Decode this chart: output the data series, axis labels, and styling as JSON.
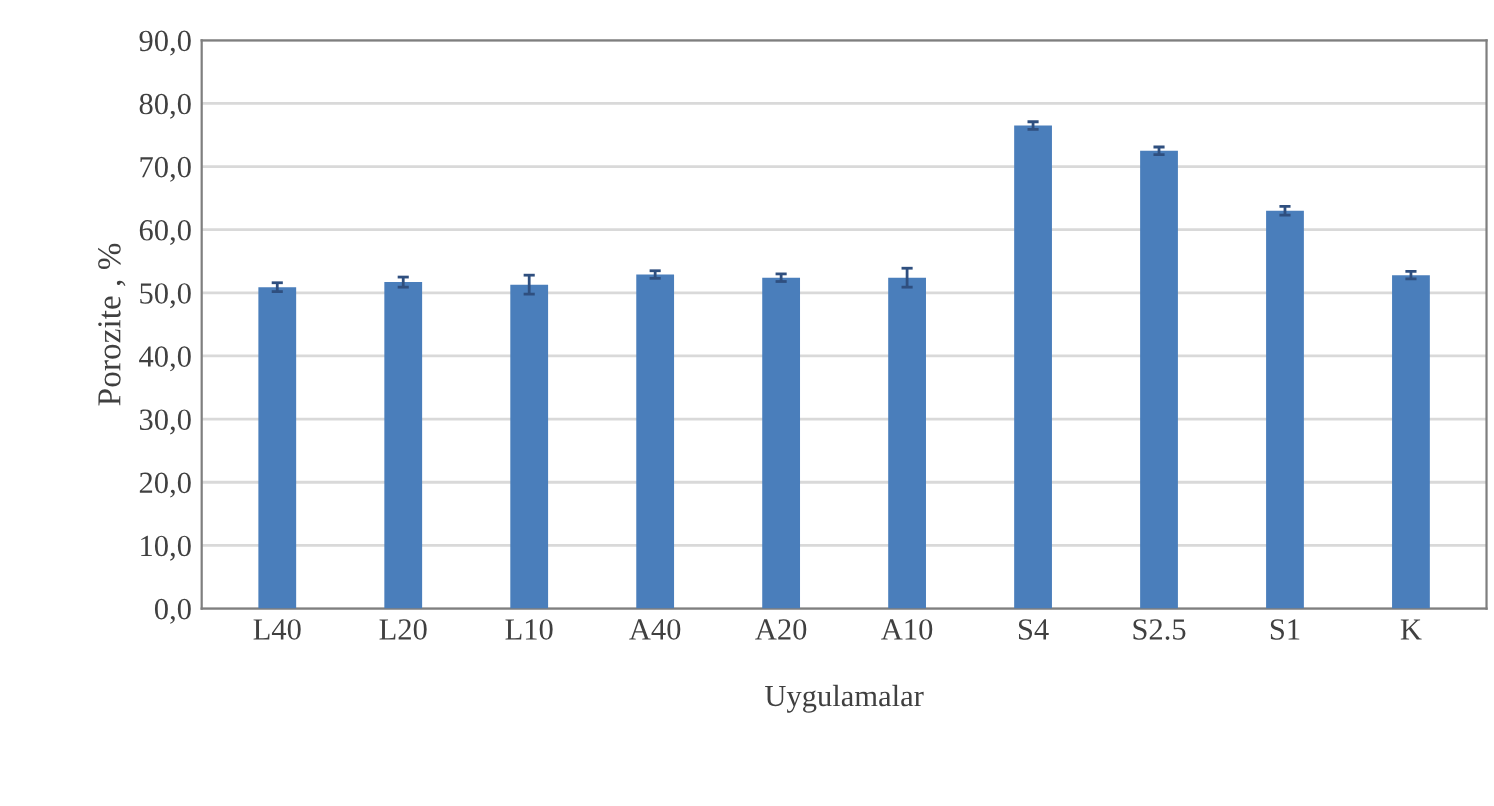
{
  "chart_data": {
    "type": "bar",
    "xlabel": "Uygulamalar",
    "ylabel": "Porozite , %",
    "categories": [
      "L40",
      "L20",
      "L10",
      "A40",
      "A20",
      "A10",
      "S4",
      "S2.5",
      "S1",
      "K"
    ],
    "values": [
      50.9,
      51.7,
      51.3,
      52.9,
      52.4,
      52.4,
      76.5,
      72.5,
      63.0,
      52.8
    ],
    "errors": [
      0.7,
      0.8,
      1.5,
      0.6,
      0.6,
      1.5,
      0.6,
      0.6,
      0.7,
      0.6
    ],
    "color": "#4a7ebb",
    "ylim": [
      0,
      90
    ],
    "yticks": [
      {
        "value": 0,
        "label": "0,0"
      },
      {
        "value": 10,
        "label": "10,0"
      },
      {
        "value": 20,
        "label": "20,0"
      },
      {
        "value": 30,
        "label": "30,0"
      },
      {
        "value": 40,
        "label": "40,0"
      },
      {
        "value": 50,
        "label": "50,0"
      },
      {
        "value": 60,
        "label": "60,0"
      },
      {
        "value": 70,
        "label": "70,0"
      },
      {
        "value": 80,
        "label": "80,0"
      },
      {
        "value": 90,
        "label": "90,0"
      }
    ],
    "grid": "y"
  }
}
